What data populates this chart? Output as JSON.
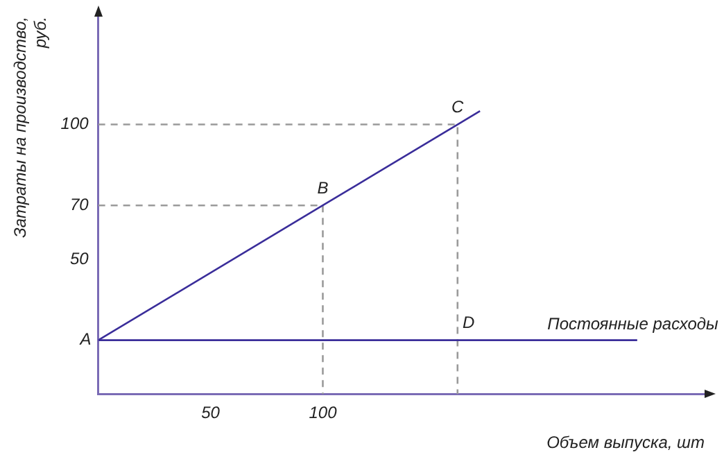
{
  "chart_data": {
    "type": "line",
    "xlabel": "Объем выпуска, шт",
    "ylabel": "Затраты на производство,\nруб.",
    "xlim": [
      0,
      270
    ],
    "ylim": [
      0,
      140
    ],
    "xticks": [
      50,
      100
    ],
    "yticks": [
      50,
      70,
      100
    ],
    "grid": false,
    "legend": false,
    "marker": "none",
    "series": [
      {
        "color": "#3a2d9a",
        "x": [
          0,
          100,
          160,
          170
        ],
        "values": [
          20,
          70,
          100,
          105
        ],
        "line_style": "solid"
      },
      {
        "color": "#3a2d9a",
        "x": [
          0,
          240
        ],
        "values": [
          20,
          20
        ],
        "line_style": "solid"
      },
      {
        "color": "#9a9a9a",
        "x": [
          0,
          100,
          100
        ],
        "values": [
          70,
          70,
          0
        ],
        "line_style": "dashed"
      },
      {
        "color": "#9a9a9a",
        "x": [
          0,
          160,
          160
        ],
        "values": [
          100,
          100,
          0
        ],
        "line_style": "dashed"
      }
    ],
    "annotations": [
      {
        "text": "A",
        "x": 0,
        "y": 20
      },
      {
        "text": "B",
        "x": 100,
        "y": 70
      },
      {
        "text": "C",
        "x": 160,
        "y": 100
      },
      {
        "text": "D",
        "x": 160,
        "y": 20
      },
      {
        "text": "Постоянные расходы",
        "x": 200,
        "y": 20
      }
    ]
  }
}
